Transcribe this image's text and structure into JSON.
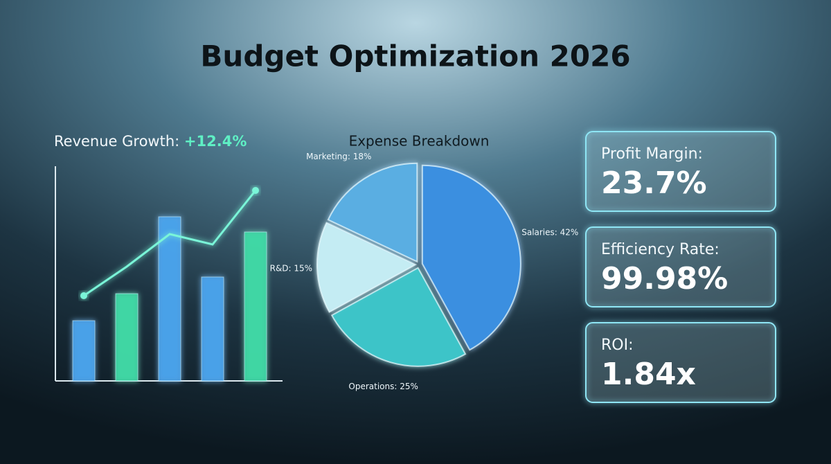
{
  "title": "Budget Optimization 2026",
  "chart_data": [
    {
      "type": "bar",
      "title": "Revenue Growth:",
      "title_value": "+12.4%",
      "categories": [
        null,
        null,
        null,
        null,
        null
      ],
      "values": [
        87,
        126,
        237,
        150,
        215
      ],
      "colors": [
        "#4aa3ec",
        "#3fd9a6",
        "#4aa3ec",
        "#4aa3ec",
        "#3fd9a6"
      ],
      "line_values": [
        123,
        165,
        212,
        197,
        275
      ],
      "line_color": "#7af5d8",
      "ylim": [
        0,
        310
      ]
    },
    {
      "type": "pie",
      "title": "Expense Breakdown",
      "values": [
        42,
        25,
        15,
        18
      ],
      "value_labels": [
        "Salaries: 42%",
        "Operations: 25%",
        "R&D: 15%",
        "Marketing: 18%"
      ],
      "colors": [
        "#3a8fe0",
        "#3cc4c8",
        "#c4ecf3",
        "#5aaee2"
      ]
    }
  ],
  "kpis": [
    {
      "label": "Profit Margin:",
      "value": "23.7%"
    },
    {
      "label": "Efficiency Rate:",
      "value": "99.98%"
    },
    {
      "label": "ROI:",
      "value": "1.84x"
    }
  ]
}
